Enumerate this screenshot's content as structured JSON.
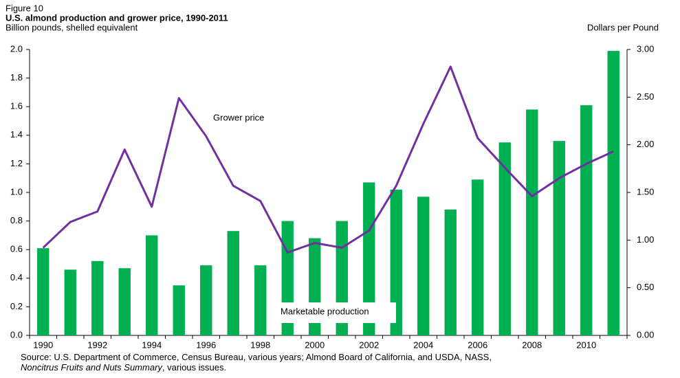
{
  "chart_data": {
    "type": "combo",
    "figure_label": "Figure 10",
    "title": "U.S. almond production and grower price, 1990-2011",
    "y_label": "Billion pounds, shelled equivalent",
    "y2_label": "Dollars per Pound",
    "categories": [
      "1990",
      null,
      "1992",
      null,
      "1994",
      null,
      "1996",
      null,
      "1998",
      null,
      "2000",
      null,
      "2002",
      null,
      "2004",
      null,
      "2006",
      null,
      "2008",
      null,
      "2010",
      null
    ],
    "series": [
      {
        "name": "Marketable production",
        "type": "bar",
        "color": "#00b050",
        "axis": "y",
        "values": [
          0.61,
          0.46,
          0.52,
          0.47,
          0.7,
          0.35,
          0.49,
          0.73,
          0.49,
          0.8,
          0.68,
          0.8,
          1.07,
          1.02,
          0.97,
          0.88,
          1.09,
          1.35,
          1.58,
          1.36,
          1.61,
          1.99
        ]
      },
      {
        "name": "Grower price",
        "type": "line",
        "color": "#7030a0",
        "axis": "y2",
        "values": [
          0.92,
          1.19,
          1.3,
          1.95,
          1.35,
          2.49,
          2.09,
          1.57,
          1.41,
          0.87,
          0.97,
          0.92,
          1.1,
          1.57,
          2.22,
          2.82,
          2.07,
          1.76,
          1.46,
          1.65,
          1.8,
          1.93
        ]
      }
    ],
    "ylim": [
      0,
      2
    ],
    "yticks": [
      {
        "value": 0,
        "label": "0.0"
      },
      0.2,
      0.4,
      0.6,
      0.8,
      {
        "value": 1,
        "label": "1.0"
      },
      1.2,
      1.4,
      1.6,
      1.8,
      {
        "value": 2,
        "label": "2.0"
      }
    ],
    "y2lim": [
      0,
      3
    ],
    "y2ticks": [
      {
        "value": 0,
        "label": "0.00"
      },
      {
        "value": 0.5,
        "label": "0.50"
      },
      {
        "value": 1,
        "label": "1.00"
      },
      {
        "value": 1.5,
        "label": "1.50"
      },
      {
        "value": 2,
        "label": "2.00"
      },
      {
        "value": 2.5,
        "label": "2.50"
      },
      {
        "value": 3,
        "label": "3.00"
      }
    ],
    "grid": false,
    "source": [
      "Source:  U.S. Department of Commerce, Census Bureau, various years; Almond Board of California, and  USDA, NASS, ",
      "Noncitrus Fruits and Nuts Summary",
      ", various issues."
    ]
  }
}
